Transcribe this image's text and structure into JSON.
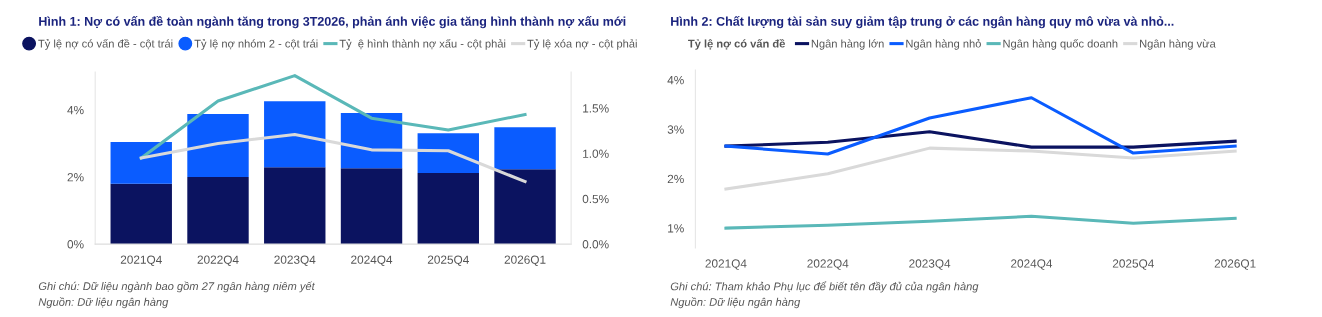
{
  "chart_data": [
    {
      "type": "bar",
      "title": "Hình 1: Nợ có vấn đề toàn ngành tăng trong 3T2026, phản ánh việc gia tăng hình thành nợ xấu mới",
      "categories": [
        "2021Q4",
        "2022Q4",
        "2023Q4",
        "2024Q4",
        "2025Q4",
        "2026Q1"
      ],
      "stacked": true,
      "series": [
        {
          "name": "Tỷ lệ nợ có vấn đề - cột trái",
          "color": "#0b1360",
          "values": [
            1.8,
            2.0,
            2.29,
            2.26,
            2.12,
            2.23
          ]
        },
        {
          "name": "Tỷ lệ nợ nhóm 2 - cột trái",
          "color": "#0a5cff",
          "values": [
            1.24,
            1.88,
            1.97,
            1.65,
            1.18,
            1.25
          ]
        },
        {
          "name": "Tỷ  ệ hình thành nợ xấu - cột phải",
          "type": "line",
          "axis": "y2",
          "color": "#5ab8b8",
          "values": [
            0.95,
            1.58,
            1.86,
            1.39,
            1.26,
            1.43
          ]
        },
        {
          "name": "Tỷ lệ xóa nợ - cột phải",
          "type": "line",
          "axis": "y2",
          "color": "#d9d9d9",
          "values": [
            0.95,
            1.11,
            1.21,
            1.04,
            1.03,
            0.69
          ]
        }
      ],
      "ylim": [
        0,
        5.13
      ],
      "yticks": [
        {
          "value": 0,
          "label": "0%"
        },
        {
          "value": 2,
          "label": "2%"
        },
        {
          "value": 4,
          "label": "4%"
        }
      ],
      "y2lim": [
        0,
        1.9
      ],
      "y2ticks": [
        {
          "value": 0,
          "label": "0.0%"
        },
        {
          "value": 0.5,
          "label": "0.5%"
        },
        {
          "value": 1.0,
          "label": "1.0%"
        },
        {
          "value": 1.5,
          "label": "1.5%"
        }
      ],
      "grid": false,
      "legend": "top",
      "annotations": [
        "Ghi chú: Dữ liệu ngành bao gồm 27 ngân hàng niêm yết",
        "Nguồn: Dữ liệu ngân hàng"
      ]
    },
    {
      "type": "line",
      "title": "Hình 2: Chất lượng tài sản suy giảm tập trung ở các ngân hàng quy mô vừa và nhỏ...",
      "categories": [
        "2021Q4",
        "2022Q4",
        "2023Q4",
        "2024Q4",
        "2025Q4",
        "2026Q1"
      ],
      "legend_title": "Tỷ lệ nợ có vấn đề",
      "series": [
        {
          "name": "Ngân hàng lớn",
          "color": "#0b1360",
          "values": [
            2.66,
            2.74,
            2.95,
            2.64,
            2.64,
            2.76
          ]
        },
        {
          "name": "Ngân hàng nhỏ",
          "color": "#0a5cff",
          "values": [
            2.66,
            2.5,
            3.23,
            3.64,
            2.52,
            2.66
          ]
        },
        {
          "name": "Ngân hàng quốc doanh",
          "color": "#5ab8b8",
          "values": [
            1.0,
            1.06,
            1.14,
            1.24,
            1.1,
            1.2
          ]
        },
        {
          "name": "Ngân hàng vừa",
          "color": "#d9d9d9",
          "values": [
            1.79,
            2.1,
            2.62,
            2.56,
            2.42,
            2.56
          ]
        }
      ],
      "ylim": [
        0.6,
        4.2
      ],
      "yticks": [
        {
          "value": 1,
          "label": "1%"
        },
        {
          "value": 2,
          "label": "2%"
        },
        {
          "value": 3,
          "label": "3%"
        },
        {
          "value": 4,
          "label": "4%"
        }
      ],
      "grid": false,
      "legend": "top",
      "annotations": [
        "Ghi chú: Tham khảo Phụ lục để biết tên đầy đủ của ngân hàng",
        "Nguồn: Dữ liệu ngân hàng"
      ]
    }
  ]
}
